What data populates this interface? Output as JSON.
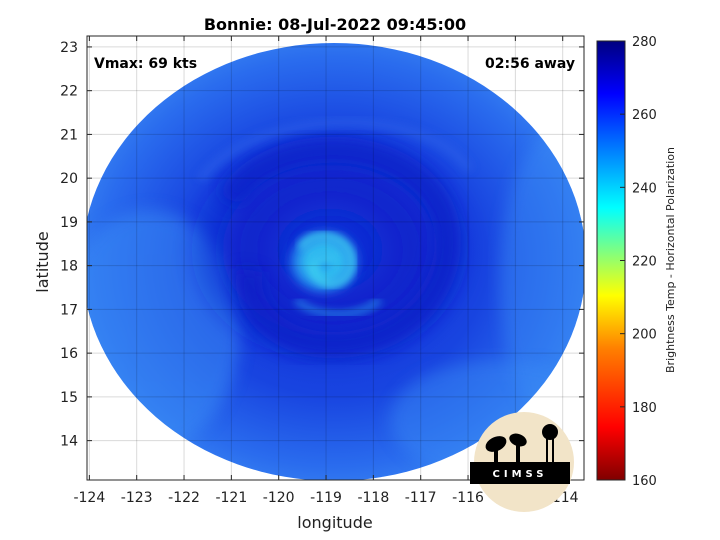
{
  "title": "Bonnie: 08-Jul-2022 09:45:00",
  "annotations": {
    "vmax": "Vmax: 69 kts",
    "away": "02:56 away"
  },
  "axes": {
    "xlabel": "longitude",
    "ylabel": "latitude",
    "xticks": [
      -124,
      -123,
      -122,
      -121,
      -120,
      -119,
      -118,
      -117,
      -116,
      -115,
      -114
    ],
    "yticks": [
      14,
      15,
      16,
      17,
      18,
      19,
      20,
      21,
      22,
      23
    ],
    "xlim": [
      -124.05,
      -113.55
    ],
    "ylim": [
      13.1,
      23.25
    ]
  },
  "colorbar": {
    "label": "Brightness Temp - Horizontal Polarization",
    "ticks": [
      160,
      180,
      200,
      220,
      240,
      260,
      280
    ],
    "range": [
      160,
      280
    ],
    "colormap": [
      "#800000",
      "#ff0000",
      "#ff8000",
      "#ffff00",
      "#80ff80",
      "#00ffff",
      "#0080ff",
      "#0000ff",
      "#000080"
    ]
  },
  "swath": {
    "center_lon": -118.9,
    "center_lat": 18.1,
    "eye_lon": -119.4,
    "eye_lat": 18.1
  },
  "logo": {
    "text": "CIMSS"
  }
}
